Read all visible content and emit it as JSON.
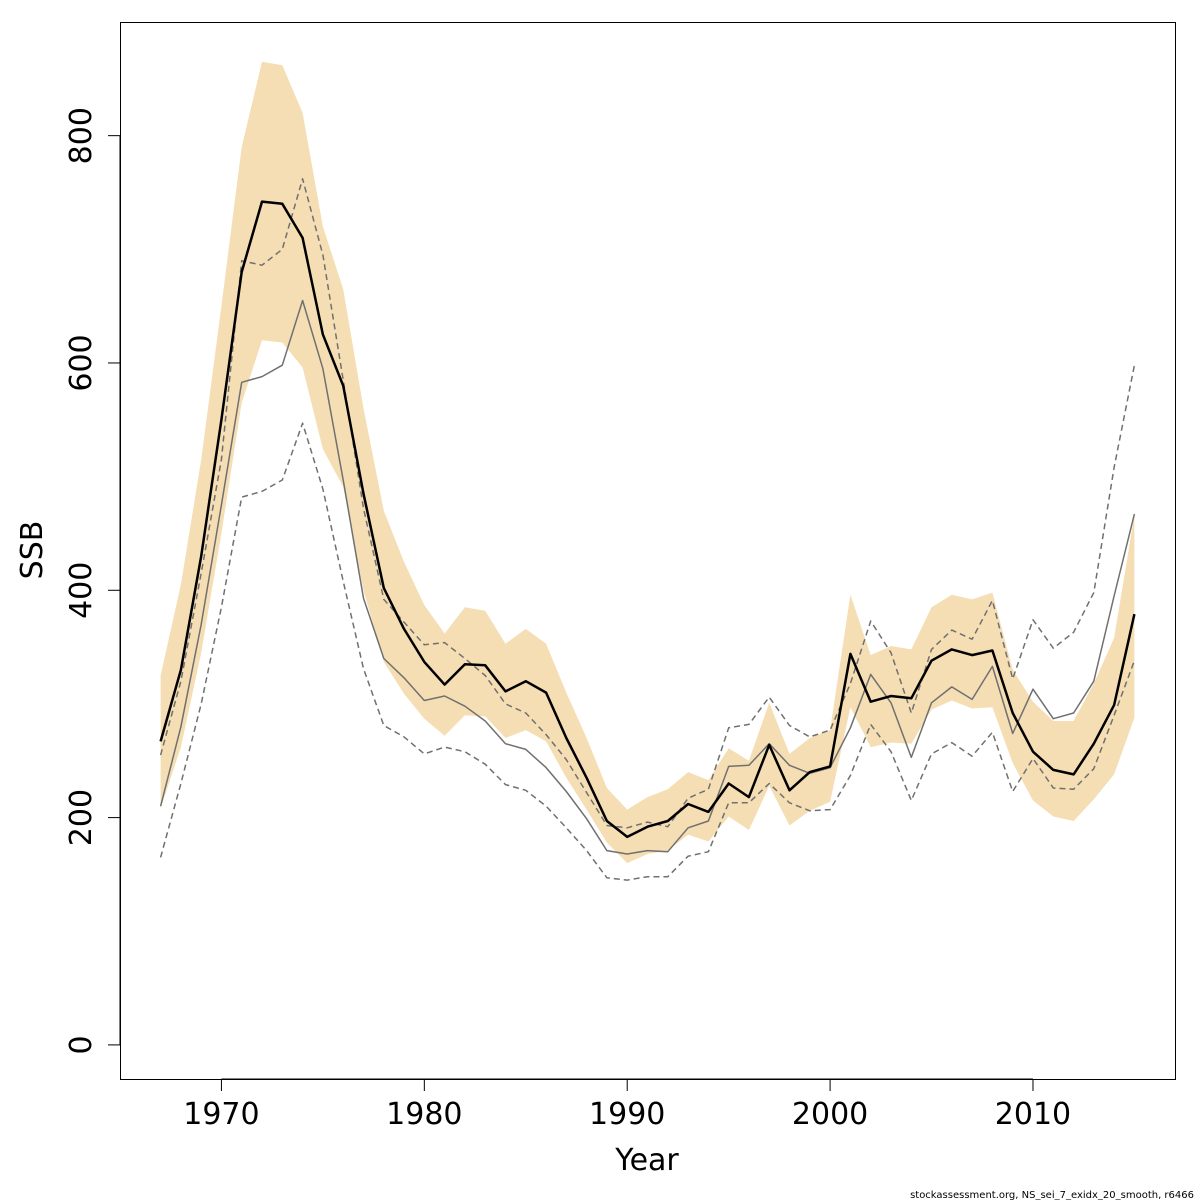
{
  "chart_data": {
    "type": "line",
    "xlabel": "Year",
    "ylabel": "SSB",
    "xlim": [
      1965,
      2017
    ],
    "ylim": [
      -30,
      900
    ],
    "x_ticks": [
      1970,
      1980,
      1990,
      2000,
      2010
    ],
    "y_ticks": [
      0,
      200,
      400,
      600,
      800
    ],
    "footer": "stockassessment.org, NS_sei_7_exidx_20_smooth, r6466",
    "colors": {
      "band": "#F5DEB3",
      "estimate": "#000000",
      "retro": "#707070",
      "frame": "#000000"
    },
    "x": [
      1967,
      1968,
      1969,
      1970,
      1971,
      1972,
      1973,
      1974,
      1975,
      1976,
      1977,
      1978,
      1979,
      1980,
      1981,
      1982,
      1983,
      1984,
      1985,
      1986,
      1987,
      1988,
      1989,
      1990,
      1991,
      1992,
      1993,
      1994,
      1995,
      1996,
      1997,
      1998,
      1999,
      2000,
      2001,
      2002,
      2003,
      2004,
      2005,
      2006,
      2007,
      2008,
      2009,
      2010,
      2011,
      2012,
      2013,
      2014,
      2015
    ],
    "series": [
      {
        "role": "band",
        "upper": [
          325,
          405,
          515,
          650,
          790,
          865,
          862,
          820,
          720,
          665,
          560,
          470,
          425,
          387,
          362,
          385,
          382,
          353,
          366,
          353,
          310,
          270,
          226,
          207,
          218,
          225,
          240,
          233,
          261,
          250,
          301,
          256,
          270,
          277,
          396,
          343,
          351,
          348,
          385,
          396,
          392,
          398,
          330,
          302,
          285,
          285,
          318,
          358,
          466
        ],
        "lower": [
          208,
          262,
          345,
          450,
          565,
          620,
          618,
          596,
          524,
          491,
          400,
          337,
          309,
          287,
          272,
          290,
          289,
          270,
          277,
          267,
          235,
          207,
          178,
          160,
          168,
          171,
          185,
          179,
          201,
          189,
          228,
          193,
          206,
          214,
          297,
          262,
          266,
          265,
          295,
          303,
          296,
          297,
          248,
          215,
          201,
          197,
          216,
          238,
          288
        ]
      },
      {
        "role": "estimate",
        "values": [
          267,
          330,
          430,
          550,
          680,
          742,
          740,
          710,
          625,
          580,
          485,
          402,
          366,
          337,
          317,
          335,
          334,
          311,
          320,
          310,
          270,
          235,
          197,
          183,
          192,
          197,
          212,
          205,
          230,
          218,
          264,
          224,
          240,
          245,
          344,
          302,
          307,
          305,
          338,
          348,
          343,
          347,
          292,
          258,
          242,
          238,
          265,
          299,
          379
        ]
      },
      {
        "role": "retro",
        "values": [
          210,
          280,
          370,
          475,
          583,
          588,
          598,
          655,
          595,
          497,
          393,
          340,
          323,
          303,
          307,
          298,
          285,
          265,
          260,
          244,
          223,
          199,
          171,
          168,
          171,
          170,
          191,
          197,
          245,
          246,
          265,
          246,
          239,
          244,
          279,
          326,
          301,
          253,
          301,
          315,
          304,
          333,
          274,
          313,
          287,
          292,
          320,
          395,
          467
        ]
      },
      {
        "role": "retro-bound",
        "values": [
          165,
          230,
          300,
          385,
          482,
          487,
          497,
          547,
          489,
          408,
          331,
          281,
          271,
          256,
          262,
          258,
          247,
          229,
          224,
          210,
          191,
          171,
          147,
          145,
          148,
          148,
          166,
          170,
          213,
          213,
          230,
          213,
          206,
          207,
          237,
          282,
          258,
          215,
          256,
          266,
          254,
          275,
          223,
          252,
          226,
          225,
          243,
          290,
          338
        ]
      },
      {
        "role": "retro-bound",
        "values": [
          255,
          320,
          415,
          515,
          690,
          686,
          700,
          762,
          695,
          585,
          472,
          392,
          372,
          352,
          354,
          340,
          325,
          300,
          292,
          273,
          251,
          222,
          193,
          191,
          196,
          192,
          217,
          225,
          279,
          282,
          306,
          281,
          271,
          277,
          318,
          373,
          345,
          292,
          348,
          365,
          357,
          391,
          322,
          374,
          349,
          363,
          398,
          508,
          598
        ]
      }
    ]
  }
}
